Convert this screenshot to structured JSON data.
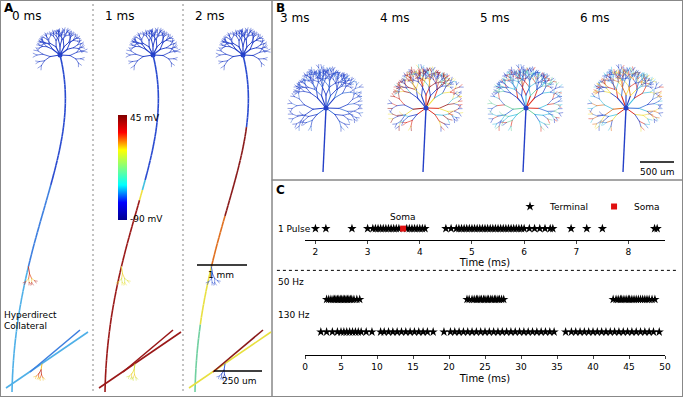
{
  "panels": [
    {
      "label": "A",
      "frames": [
        "0 ms",
        "1 ms",
        "2 ms"
      ],
      "colorbar": {
        "top_label": "45 mV",
        "bottom_label": "-90 mV"
      },
      "scale_bars": [
        "1 mm",
        "250 um"
      ],
      "inset_label": [
        "Hyperdirect",
        "Collateral"
      ]
    },
    {
      "label": "B",
      "frames": [
        "3 ms",
        "4 ms",
        "5 ms",
        "6 ms"
      ],
      "scale_bars": [
        "500 um"
      ]
    },
    {
      "label": "C"
    }
  ],
  "chart_data": [
    {
      "type": "scatter",
      "title": "1 Pulse",
      "x_label": "Time (ms)",
      "xlim": [
        1.8,
        8.7
      ],
      "xticks": [
        2,
        3,
        4,
        5,
        6,
        7,
        8
      ],
      "tick_labels": "x",
      "legend": "upper right",
      "series": [
        {
          "name": "Terminal",
          "color": "#000000",
          "marker": "star",
          "x": [
            2.0,
            2.2,
            2.7,
            3.0,
            3.1,
            3.15,
            3.2,
            3.25,
            3.3,
            3.35,
            3.4,
            3.45,
            3.5,
            3.55,
            3.6,
            3.75,
            3.8,
            3.85,
            3.9,
            3.95,
            4.0,
            4.05,
            4.1,
            4.5,
            4.6,
            4.7,
            4.75,
            4.8,
            4.85,
            4.9,
            4.95,
            5.0,
            5.05,
            5.1,
            5.15,
            5.2,
            5.25,
            5.3,
            5.35,
            5.4,
            5.45,
            5.5,
            5.55,
            5.6,
            5.65,
            5.7,
            5.75,
            5.8,
            5.85,
            5.9,
            5.95,
            6.0,
            6.1,
            6.2,
            6.3,
            6.4,
            6.5,
            6.55,
            6.9,
            7.2,
            7.5,
            8.5,
            8.55
          ]
        },
        {
          "name": "Soma",
          "color": "#e01010",
          "marker": "square",
          "x": [
            3.68
          ]
        }
      ],
      "annotations": [
        {
          "text": "Soma",
          "x": 3.68
        }
      ]
    },
    {
      "type": "scatter",
      "title": "50 Hz",
      "xlim": [
        0,
        50
      ],
      "tick_labels": false,
      "series": [
        {
          "color": "#000000",
          "marker": "star",
          "x": [
            3.0,
            3.3,
            3.6,
            3.9,
            4.1,
            4.3,
            4.5,
            4.7,
            4.9,
            5.1,
            5.3,
            5.5,
            5.7,
            5.9,
            6.1,
            6.3,
            6.5,
            6.8,
            7.2,
            7.6,
            22.5,
            22.8,
            23.2,
            23.5,
            23.8,
            24.0,
            24.3,
            24.5,
            24.8,
            25.0,
            25.3,
            25.5,
            25.8,
            26.0,
            26.3,
            26.5,
            26.8,
            27.0,
            27.3,
            27.6,
            42.8,
            43.2,
            43.5,
            43.8,
            44.0,
            44.3,
            44.6,
            44.9,
            45.1,
            45.4,
            45.7,
            46.0,
            46.3,
            46.6,
            46.9,
            47.2,
            47.5,
            47.8,
            48.2,
            48.6
          ]
        }
      ]
    },
    {
      "type": "scatter",
      "title": "130 Hz",
      "x_label": "Time (ms)",
      "xlim": [
        0,
        50
      ],
      "xticks": [
        0,
        5,
        10,
        15,
        20,
        25,
        30,
        35,
        40,
        45,
        50
      ],
      "tick_labels": "x",
      "series": [
        {
          "color": "#000000",
          "marker": "star",
          "x": [
            2.2,
            3.0,
            3.8,
            4.5,
            5.0,
            5.4,
            5.8,
            6.2,
            6.6,
            7.0,
            7.4,
            7.8,
            8.5,
            9.3,
            10.5,
            11.0,
            11.6,
            12.2,
            12.8,
            13.4,
            14.0,
            14.6,
            15.2,
            15.8,
            16.4,
            17.0,
            17.8,
            19.3,
            20.2,
            20.8,
            21.4,
            22.0,
            22.6,
            23.2,
            23.8,
            24.4,
            25.0,
            25.6,
            26.2,
            26.8,
            27.4,
            28.0,
            28.6,
            29.2,
            29.8,
            30.4,
            31.0,
            31.6,
            32.2,
            32.8,
            33.4,
            34.0,
            34.6,
            36.2,
            37.0,
            37.6,
            38.2,
            38.8,
            39.4,
            40.0,
            40.6,
            41.2,
            41.8,
            42.4,
            43.0,
            43.6,
            44.2,
            44.8,
            45.4,
            46.0,
            46.6,
            47.2,
            47.8,
            48.4,
            49.2
          ]
        }
      ]
    }
  ]
}
